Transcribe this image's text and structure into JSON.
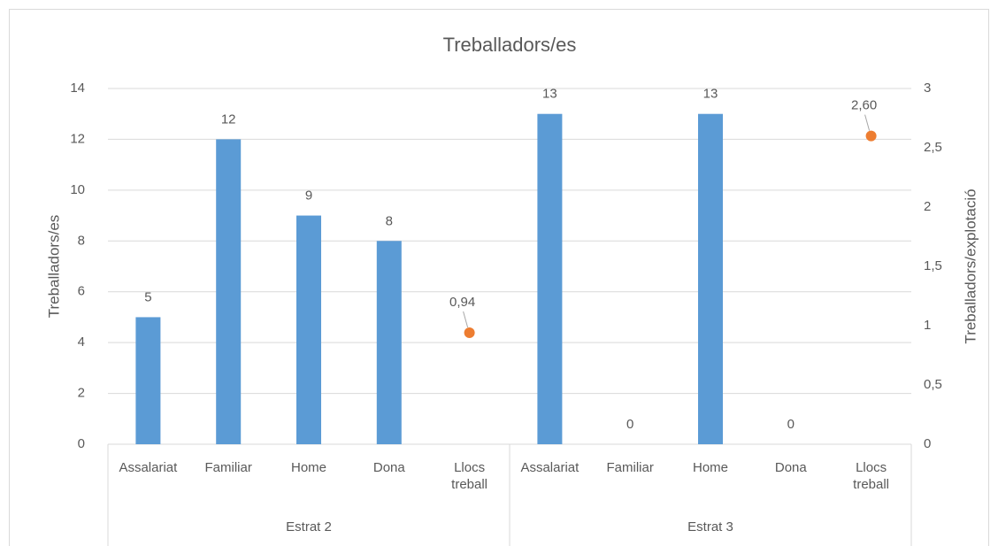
{
  "chart_data": {
    "type": "bar",
    "title": "Treballadors/es",
    "ylabel": "Treballadors/es",
    "y2label": "Treballadors/explotació",
    "categories": [
      "Assalariat",
      "Familiar",
      "Home",
      "Dona",
      "Llocs treball",
      "Assalariat",
      "Familiar",
      "Home",
      "Dona",
      "Llocs treball"
    ],
    "groups": [
      "Estrat 2",
      "Estrat 3"
    ],
    "series": [
      {
        "type": "bar",
        "color": "#5b9bd5",
        "values": [
          5,
          12,
          9,
          8,
          null,
          13,
          0,
          13,
          0,
          null
        ]
      },
      {
        "type": "scatter",
        "axis": "y2",
        "color": "#ed7d31",
        "values": [
          null,
          null,
          null,
          null,
          0.94,
          null,
          null,
          null,
          null,
          2.6
        ],
        "value_labels": [
          null,
          null,
          null,
          null,
          "0,94",
          null,
          null,
          null,
          null,
          "2,60"
        ]
      }
    ],
    "ylim": [
      0,
      14
    ],
    "yticks": [
      0,
      2,
      4,
      6,
      8,
      10,
      12,
      14
    ],
    "y2lim": [
      0,
      3
    ],
    "y2ticks": [
      0,
      {
        "value": 0.5,
        "label": "0,5"
      },
      1,
      {
        "value": 1.5,
        "label": "1,5"
      },
      2,
      {
        "value": 2.5,
        "label": "2,5"
      },
      3
    ],
    "grid": true
  }
}
